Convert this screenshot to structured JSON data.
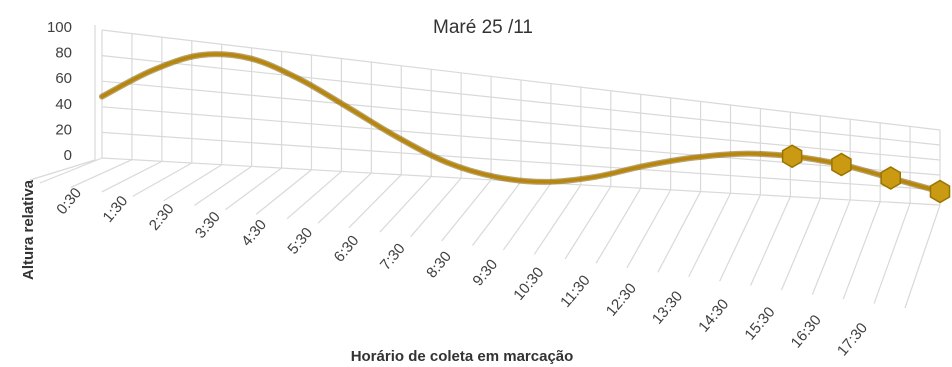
{
  "chart_data": {
    "type": "line",
    "title": "Maré 25 /11",
    "xlabel": "Horário de coleta em marcação",
    "ylabel": "Altura relativa",
    "categories": [
      "0:30",
      "1:30",
      "2:30",
      "3:30",
      "4:30",
      "5:30",
      "6:30",
      "7:30",
      "8:30",
      "9:30",
      "10:30",
      "11:30",
      "12:30",
      "13:30",
      "14:30",
      "15:30",
      "16:30",
      "17:30"
    ],
    "ylim": [
      0,
      100
    ],
    "yticks": [
      0,
      20,
      40,
      60,
      80,
      100
    ],
    "grid": true,
    "view": "3d-perspective",
    "series": [
      {
        "values": [
          48,
          72,
          89,
          91,
          78,
          57,
          34,
          14,
          3,
          1,
          9,
          24,
          37,
          46,
          48,
          43,
          31,
          18
        ],
        "markers_from_index": 14,
        "color": "#b8860b"
      }
    ]
  }
}
